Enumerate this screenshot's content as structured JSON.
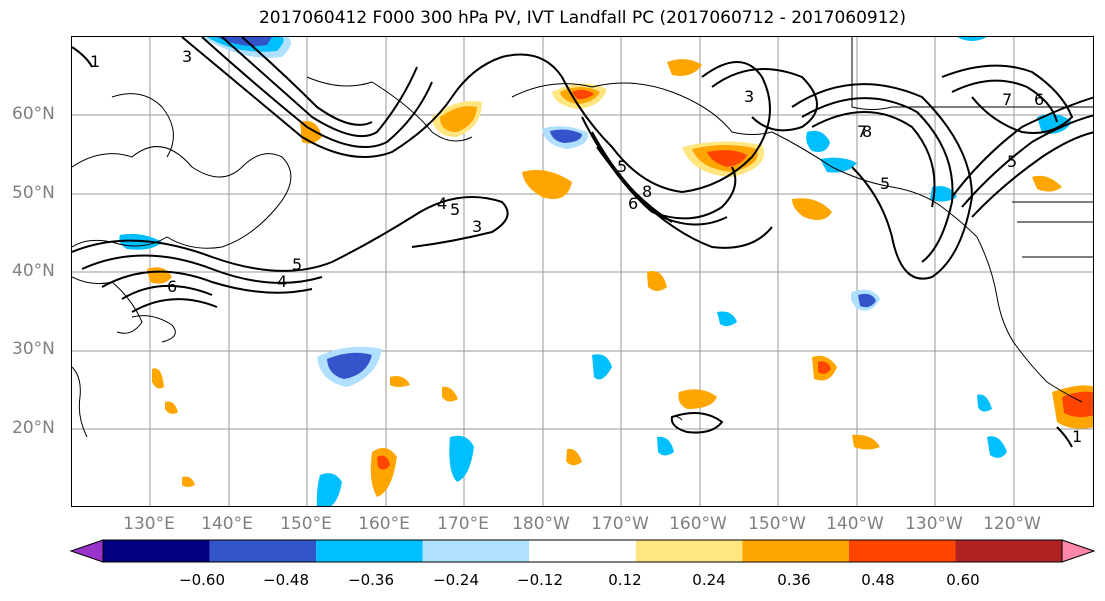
{
  "title": "2017060412 F000 300 hPa PV, IVT Landfall PC (2017060712 - 2017060912)",
  "lat_labels": [
    "60°N",
    "50°N",
    "40°N",
    "30°N",
    "20°N"
  ],
  "lon_labels": [
    "130°E",
    "140°E",
    "150°E",
    "160°E",
    "170°E",
    "180°W",
    "170°W",
    "160°W",
    "150°W",
    "140°W",
    "130°W",
    "120°W"
  ],
  "colorbar": {
    "tick_labels": [
      "−0.60",
      "−0.48",
      "−0.36",
      "−0.24",
      "−0.12",
      "0.12",
      "0.24",
      "0.36",
      "0.48",
      "0.60"
    ],
    "colors": [
      "#9933cc",
      "#000080",
      "#3355cc",
      "#00bfff",
      "#b0e0ff",
      "#ffffff",
      "#ffe680",
      "#ffa500",
      "#ff4500",
      "#b22222",
      "#ff88aa"
    ]
  },
  "contour_labels": [
    "3",
    "4",
    "5",
    "6",
    "4",
    "5",
    "3",
    "5",
    "6",
    "8",
    "3",
    "5",
    "7",
    "8",
    "7",
    "6",
    "5",
    "1",
    "1"
  ]
}
